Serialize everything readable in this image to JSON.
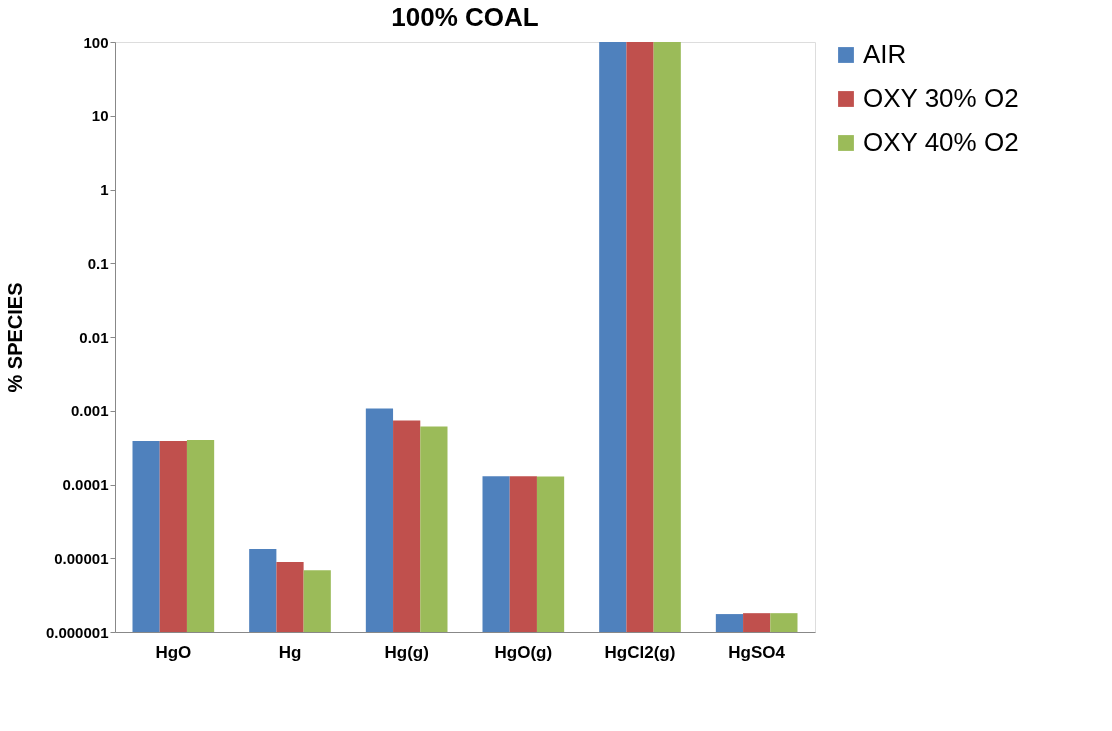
{
  "chart_data": {
    "type": "bar",
    "title": "100% COAL",
    "ylabel": "% SPECIES",
    "categories": [
      "HgO",
      "Hg",
      "Hg(g)",
      "HgO(g)",
      "HgCl2(g)",
      "HgSO4"
    ],
    "series": [
      {
        "name": "AIR",
        "color": "#4f81bd",
        "values": [
          0.00039,
          1.33e-05,
          0.00107,
          0.000129,
          100,
          1.75e-06
        ]
      },
      {
        "name": "OXY 30% O2",
        "color": "#c0504d",
        "values": [
          0.00039,
          8.9e-06,
          0.00074,
          0.000129,
          100,
          1.8e-06
        ]
      },
      {
        "name": "OXY 40% O2",
        "color": "#9bbb59",
        "values": [
          0.0004,
          6.9e-06,
          0.00061,
          0.000128,
          100,
          1.8e-06
        ]
      }
    ],
    "log": true,
    "ylim": [
      1e-06,
      100
    ],
    "yticks": [
      {
        "value": 1e-06,
        "label": "0.000001"
      },
      {
        "value": 1e-05,
        "label": "0.00001"
      },
      {
        "value": 0.0001,
        "label": "0.0001"
      },
      {
        "value": 0.001,
        "label": "0.001"
      },
      {
        "value": 0.01,
        "label": "0.01"
      },
      {
        "value": 0.1,
        "label": "0.1"
      },
      {
        "value": 1,
        "label": "1"
      },
      {
        "value": 10,
        "label": "10"
      },
      {
        "value": 100,
        "label": "100"
      }
    ],
    "grid": false,
    "legend": "right"
  }
}
